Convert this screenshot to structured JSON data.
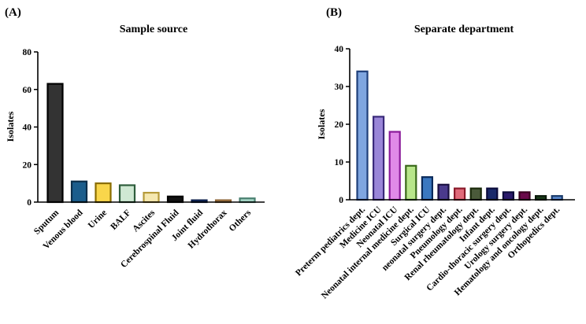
{
  "chart_data": [
    {
      "panel": "(A)",
      "type": "bar",
      "title": "Sample source",
      "xlabel": "",
      "ylabel": "Isolates",
      "ylim": [
        0,
        80
      ],
      "yticks": [
        0,
        20,
        40,
        60,
        80
      ],
      "grid": false,
      "categories": [
        "Sputum",
        "Venous blood",
        "Urine",
        "BALF",
        "Ascites",
        "Cerebrospinal Fluid",
        "Joint fluid",
        "Hydrothorax",
        "Others"
      ],
      "values": [
        63,
        11,
        10,
        9,
        5,
        3,
        1,
        1,
        2
      ],
      "fills": [
        "#333333",
        "#1b5d8c",
        "#f9d64b",
        "#cfe8d3",
        "#f5e8b0",
        "#111111",
        "#2a4d8f",
        "#e8c9a0",
        "#a8d8c8"
      ],
      "strokes": [
        "#000000",
        "#0b2e4a",
        "#8a6d00",
        "#2e5d3c",
        "#b59a3a",
        "#000000",
        "#0b1d4a",
        "#8a6030",
        "#4a8070"
      ]
    },
    {
      "panel": "(B)",
      "type": "bar",
      "title": "Separate department",
      "xlabel": "",
      "ylabel": "Isolates",
      "ylim": [
        0,
        40
      ],
      "yticks": [
        0,
        10,
        20,
        30,
        40
      ],
      "grid": false,
      "categories": [
        "Preterm pediatrics dept.",
        "Medicine ICU",
        "Neonatal ICU",
        "Neonatal internal medicine dept.",
        "Surgical ICU",
        "neonatal surgery dept.",
        "Pneumology dept.",
        "Renal rheumatology dept.",
        "Infant dept.",
        "Cardio-thoracic surgery dept.",
        "Urology surgery dept.",
        "Hematology and oncology dept.",
        "Orthopedics dept."
      ],
      "values": [
        34,
        22,
        18,
        9,
        6,
        4,
        3,
        3,
        3,
        2,
        2,
        1,
        1
      ],
      "fills": [
        "#7fa6e0",
        "#9a86d8",
        "#e08ae8",
        "#b8e68a",
        "#3b78c0",
        "#4a3a8c",
        "#e06a7a",
        "#4a5a3a",
        "#1a2a6a",
        "#2a1a6a",
        "#6a0a4a",
        "#1a3a1a",
        "#5a8ad0"
      ],
      "strokes": [
        "#1f3f7a",
        "#3a2a7a",
        "#8a1a9a",
        "#3a6a1a",
        "#0a2a5a",
        "#1a1040",
        "#8a1a2a",
        "#1a2a0a",
        "#0a0a3a",
        "#0a0a3a",
        "#3a0020",
        "#0a1a0a",
        "#1a3a6a"
      ]
    }
  ]
}
